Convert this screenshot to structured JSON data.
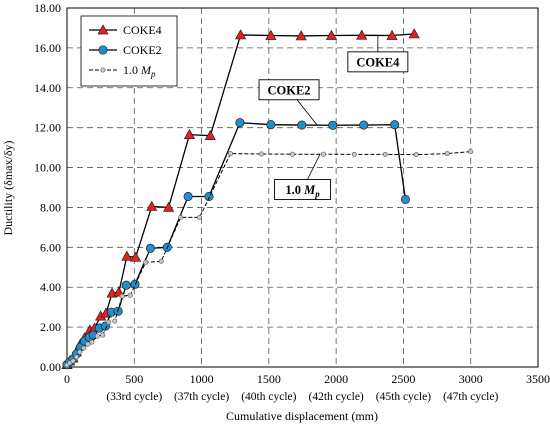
{
  "chart_data": {
    "type": "line",
    "xlabel": "Cumulative displacement (mm)",
    "ylabel": "Ductility (δmax/δy)",
    "xlim": [
      0,
      3500
    ],
    "ylim": [
      0,
      18
    ],
    "x_ticks": [
      "0",
      "500",
      "1000",
      "1500",
      "2000",
      "2500",
      "3000",
      "3500"
    ],
    "y_ticks": [
      "0.00",
      "2.00",
      "4.00",
      "6.00",
      "8.00",
      "10.00",
      "12.00",
      "14.00",
      "16.00",
      "18.00"
    ],
    "grid": "dashed",
    "legend_position": "top-left",
    "cycle_labels": [
      {
        "x": 500,
        "text": "(33rd cycle)"
      },
      {
        "x": 1000,
        "text": "(37th cycle)"
      },
      {
        "x": 1500,
        "text": "(40th cycle)"
      },
      {
        "x": 2000,
        "text": "(42th cycle)"
      },
      {
        "x": 2500,
        "text": "(45th cycle)"
      },
      {
        "x": 3000,
        "text": "(47th cycle)"
      }
    ],
    "series": [
      {
        "name": "COKE4",
        "name_main": "COKE4",
        "name_sub": "",
        "color": "#000000",
        "marker": "triangle",
        "marker_fill": "#e8201c",
        "dashed": false,
        "x": [
          0,
          20,
          45,
          70,
          100,
          130,
          170,
          205,
          250,
          290,
          335,
          385,
          445,
          510,
          630,
          755,
          910,
          1065,
          1290,
          1515,
          1740,
          1965,
          2190,
          2415,
          2580
        ],
        "y": [
          0.12,
          0.3,
          0.45,
          0.75,
          1.15,
          1.45,
          1.85,
          1.95,
          2.55,
          2.7,
          3.7,
          3.75,
          5.55,
          5.5,
          8.05,
          8.0,
          11.65,
          11.6,
          16.65,
          16.62,
          16.6,
          16.62,
          16.63,
          16.62,
          16.7
        ]
      },
      {
        "name": "COKE2",
        "name_main": "COKE2",
        "name_sub": "",
        "color": "#000000",
        "marker": "circle",
        "marker_fill": "#1f8fce",
        "dashed": false,
        "x": [
          0,
          20,
          45,
          70,
          100,
          130,
          165,
          195,
          240,
          285,
          330,
          380,
          440,
          505,
          620,
          745,
          900,
          1055,
          1285,
          1515,
          1745,
          1975,
          2205,
          2435,
          2515
        ],
        "y": [
          0.12,
          0.25,
          0.4,
          0.65,
          1.0,
          1.3,
          1.5,
          1.6,
          1.95,
          2.05,
          2.75,
          2.8,
          4.1,
          4.15,
          5.95,
          6.0,
          8.55,
          8.55,
          12.25,
          12.15,
          12.13,
          12.12,
          12.13,
          12.15,
          8.4
        ]
      },
      {
        "name": "1.0 Mp",
        "name_main": "1.0 ",
        "name_sub": "M",
        "name_subscript": "p",
        "color": "#000000",
        "marker": "small-circle",
        "marker_fill": "#c8c8c8",
        "dashed": true,
        "x": [
          0,
          20,
          45,
          70,
          95,
          125,
          155,
          185,
          225,
          265,
          310,
          355,
          410,
          470,
          585,
          700,
          845,
          985,
          1215,
          1445,
          1675,
          1905,
          2135,
          2365,
          2595,
          2825,
          3000
        ],
        "y": [
          0.1,
          0.2,
          0.3,
          0.5,
          0.75,
          0.95,
          1.15,
          1.25,
          1.55,
          1.6,
          2.25,
          2.3,
          3.55,
          3.6,
          5.25,
          5.3,
          7.5,
          7.5,
          10.7,
          10.68,
          10.67,
          10.67,
          10.66,
          10.66,
          10.65,
          10.7,
          10.8
        ]
      }
    ],
    "callouts": [
      {
        "text": "COKE4",
        "text_sub": "",
        "series": "COKE4",
        "point_x": 2310,
        "point_y": 16.62,
        "box_x": 2310,
        "box_y": 15.3
      },
      {
        "text": "COKE2",
        "text_sub": "",
        "series": "COKE2",
        "point_x": 1860,
        "point_y": 12.12,
        "box_x": 1650,
        "box_y": 13.9
      },
      {
        "text": "1.0 ",
        "text_sub": "M",
        "text_subscript": "p",
        "series": "1.0 Mp",
        "point_x": 1880,
        "point_y": 10.67,
        "box_x": 1750,
        "box_y": 8.9
      }
    ]
  }
}
